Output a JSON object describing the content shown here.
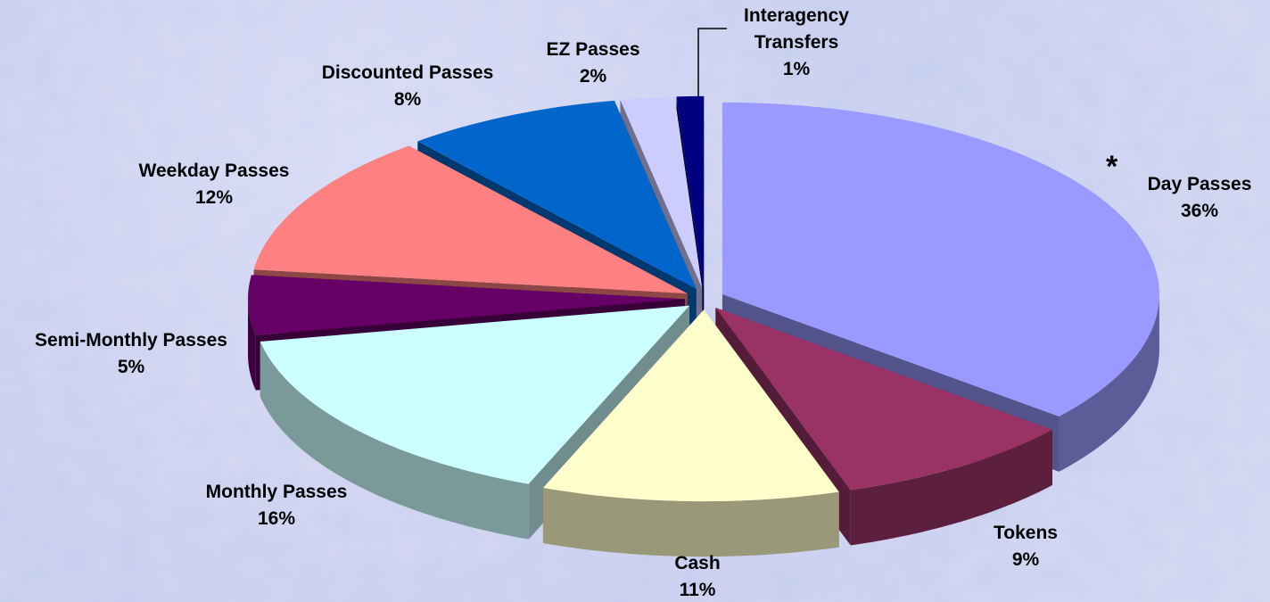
{
  "chart_data": {
    "type": "pie",
    "categories": [
      "Day Passes",
      "Tokens",
      "Cash",
      "Monthly Passes",
      "Semi-Monthly Passes",
      "Weekday Passes",
      "Discounted Passes",
      "EZ Passes",
      "Interagency Transfers"
    ],
    "values": [
      36,
      9,
      11,
      16,
      5,
      12,
      8,
      2,
      1
    ],
    "value_labels": [
      "36%",
      "9%",
      "11%",
      "16%",
      "5%",
      "12%",
      "8%",
      "2%",
      "1%"
    ],
    "colors": [
      "#9999ff",
      "#993366",
      "#ffffcc",
      "#ccffff",
      "#660066",
      "#ff8080",
      "#0066cc",
      "#ccccff",
      "#000080"
    ],
    "annotation": "*"
  }
}
